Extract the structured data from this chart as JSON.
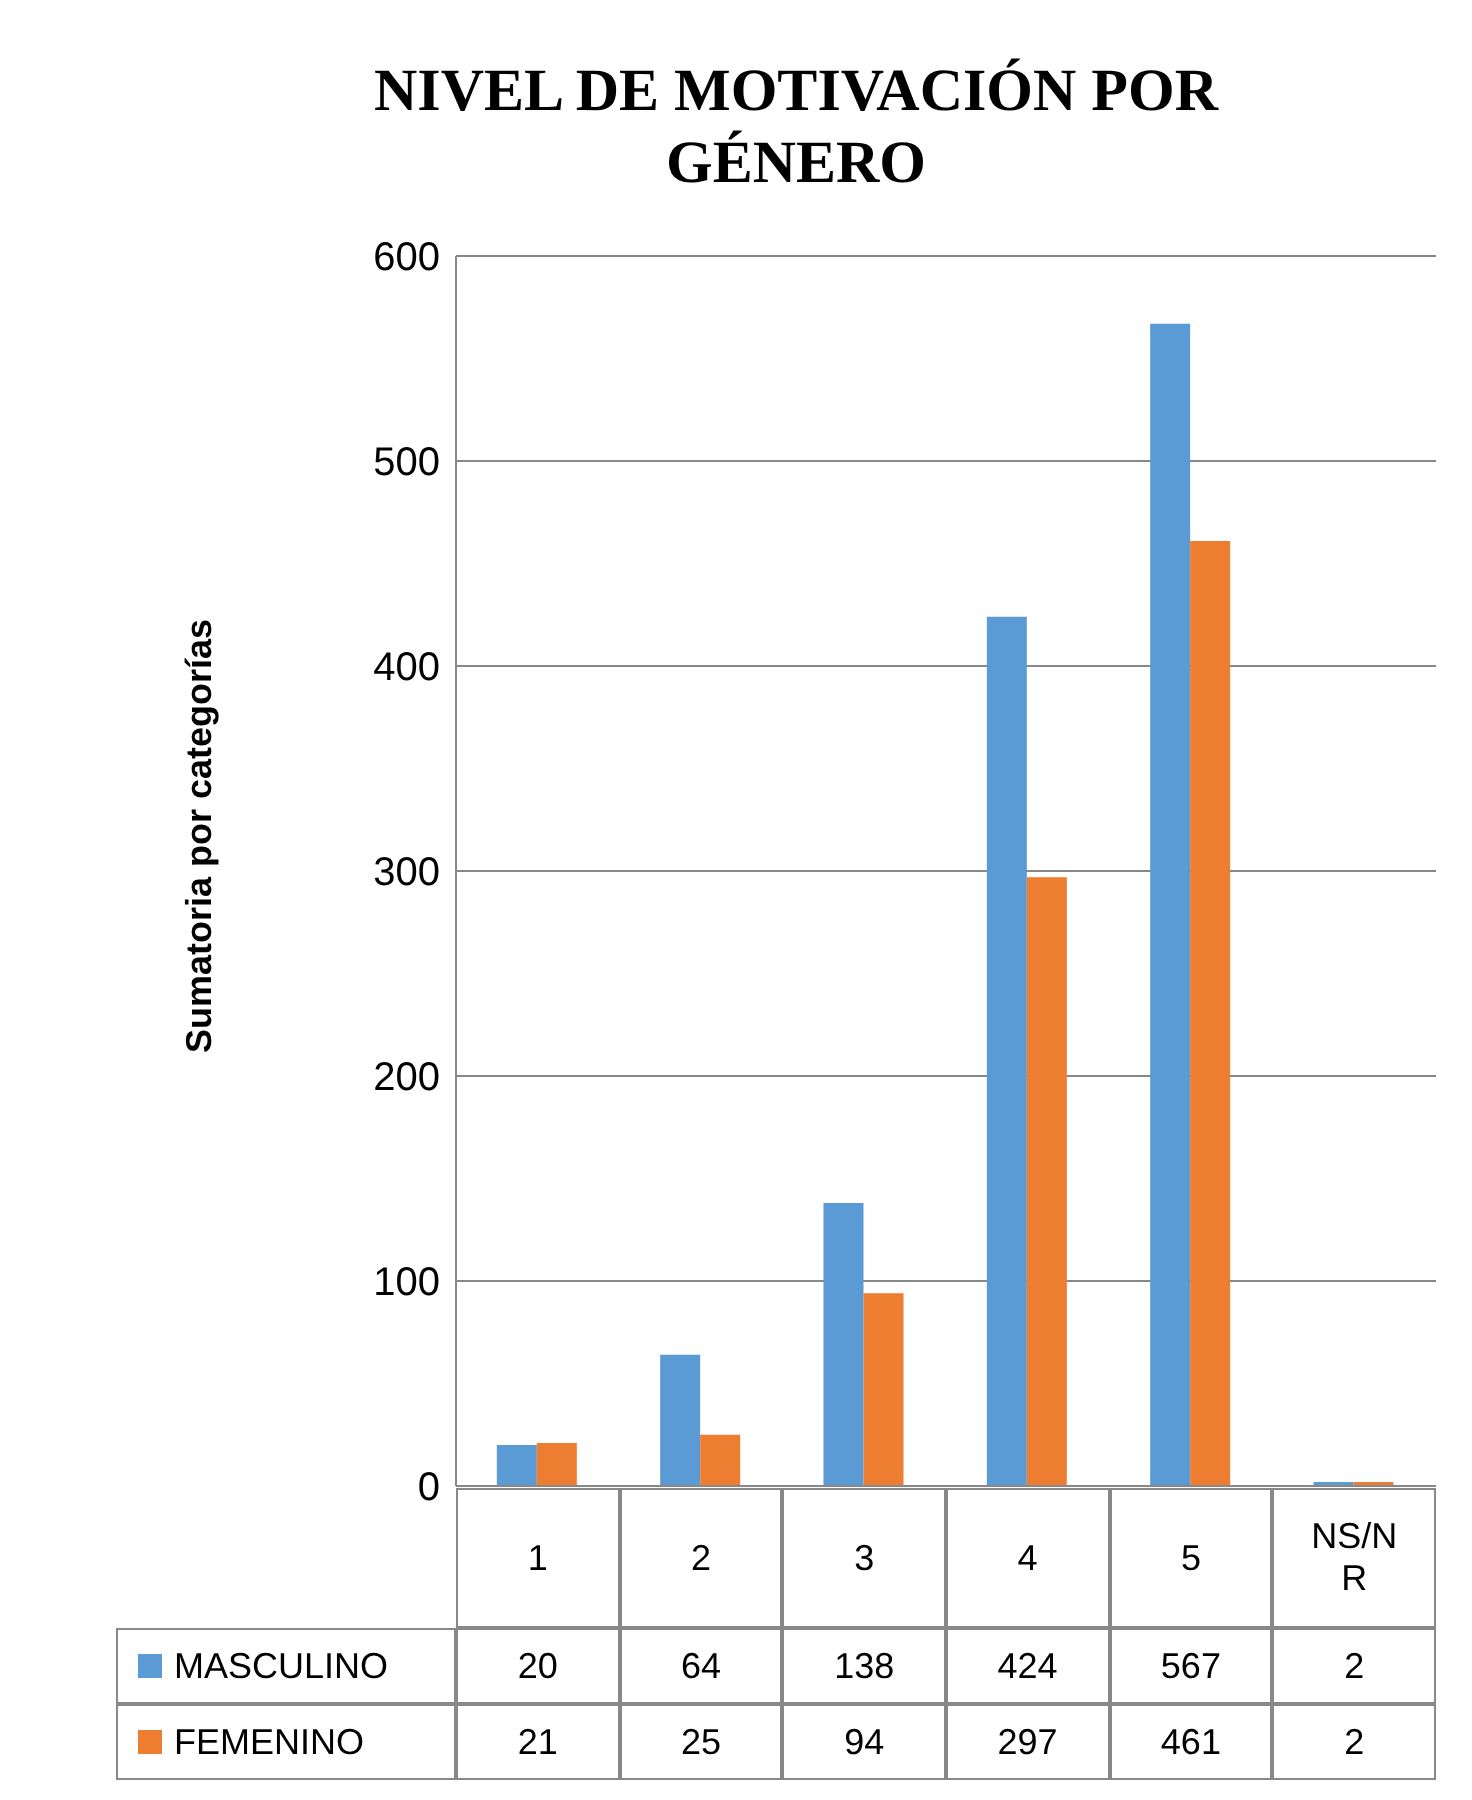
{
  "chart_data": {
    "type": "bar",
    "title": "NIVEL DE MOTIVACIÓN POR GÉNERO",
    "ylabel": "Sumatoria por categorías",
    "categories": [
      "1",
      "2",
      "3",
      "4",
      "5",
      "NS/NR"
    ],
    "series": [
      {
        "name": "MASCULINO",
        "color": "#5b9bd5",
        "values": [
          20,
          64,
          138,
          424,
          567,
          2
        ]
      },
      {
        "name": "FEMENINO",
        "color": "#ed7d31",
        "values": [
          21,
          25,
          94,
          297,
          461,
          2
        ]
      }
    ],
    "ylim": [
      0,
      600
    ],
    "yticks": [
      0,
      100,
      200,
      300,
      400,
      500,
      600
    ],
    "grid": "y",
    "legend": "bottom",
    "data_labels": true
  }
}
